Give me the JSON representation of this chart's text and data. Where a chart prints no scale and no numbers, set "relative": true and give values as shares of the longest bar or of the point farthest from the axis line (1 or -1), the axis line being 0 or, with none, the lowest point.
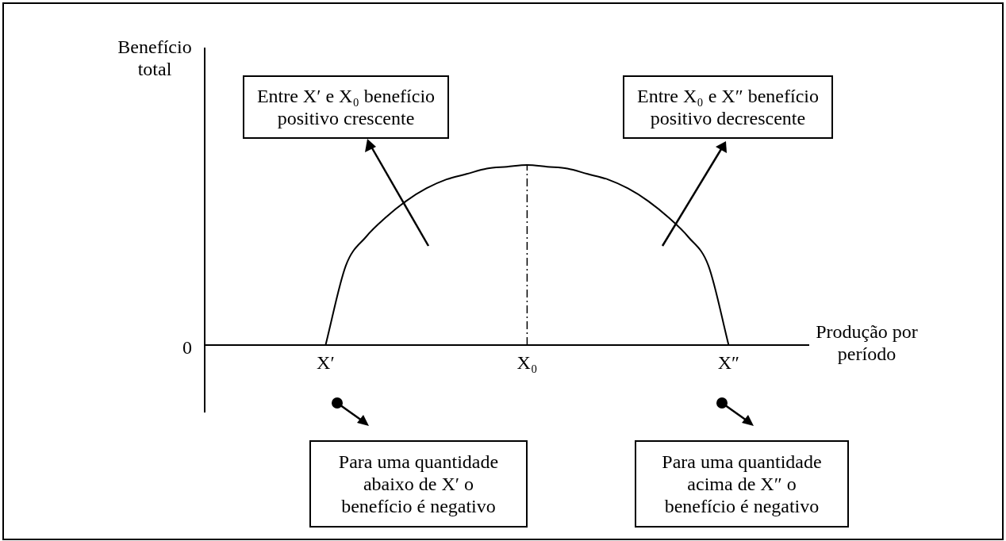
{
  "chart_data": {
    "type": "line",
    "relative": true,
    "xlabel": "Produção por período",
    "ylabel": "Benefício total",
    "categories": [
      null,
      null,
      null,
      null,
      null,
      null,
      "X′",
      null,
      null,
      null,
      null,
      null,
      null,
      null,
      null,
      null,
      "X₀",
      null,
      null,
      null,
      null,
      null,
      null,
      null,
      null,
      null,
      "X″",
      null,
      null,
      null,
      null
    ],
    "values": [
      null,
      null,
      null,
      null,
      null,
      null,
      0,
      0.44,
      0.6,
      0.71,
      0.8,
      0.87,
      0.92,
      0.95,
      0.98,
      0.99,
      1,
      0.99,
      0.98,
      0.95,
      0.92,
      0.87,
      0.8,
      0.71,
      0.6,
      0.44,
      0,
      null,
      null,
      null,
      null
    ],
    "color": "#000000",
    "marker": "none",
    "line_style": "solid",
    "ref_lines": [
      {
        "axis": "x",
        "value": "X₀",
        "line_style": "dashed",
        "color": "#000000"
      }
    ],
    "annotations": [
      "Entre X′ e X₀ benefício positivo crescente",
      "Entre X₀ e X″ benefício positivo decrescente",
      "Para uma quantidade abaixo de X′ o benefício é negativo",
      "Para uma quantidade acima de X″ o benefício é negativo",
      "0"
    ]
  }
}
